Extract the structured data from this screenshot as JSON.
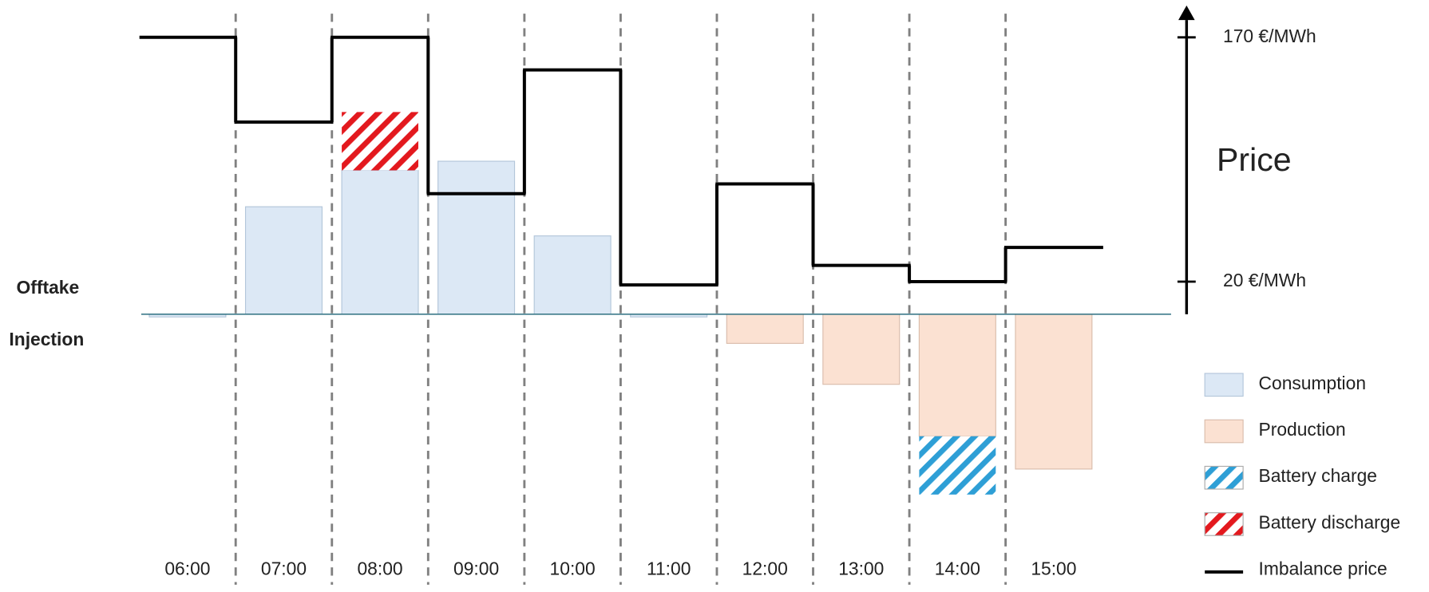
{
  "chart_data": {
    "type": "bar",
    "offtake_label": "Offtake",
    "injection_label": "Injection",
    "y2label": "Price",
    "categories": [
      "06:00",
      "07:00",
      "08:00",
      "09:00",
      "10:00",
      "11:00",
      "12:00",
      "13:00",
      "14:00",
      "15:00"
    ],
    "ylim": [
      -240,
      304
    ],
    "y2lim": [
      0,
      170
    ],
    "y2ticks": [
      {
        "value": 170,
        "label": "170 €/MWh"
      },
      {
        "value": 20,
        "label": "20 €/MWh"
      }
    ],
    "grid": false,
    "legend": "right",
    "series": [
      {
        "name": "Consumption",
        "type": "bar",
        "color": "#dce8f5",
        "stroke": "#b3c6da",
        "values": [
          -3,
          118,
          158,
          168,
          86,
          -3,
          null,
          null,
          null,
          null
        ]
      },
      {
        "name": "Production",
        "type": "bar",
        "color": "#fbe1d2",
        "stroke": "#d9bcab",
        "values": [
          null,
          null,
          null,
          null,
          null,
          null,
          -32,
          -77,
          -134,
          -170
        ]
      },
      {
        "name": "Battery charge",
        "type": "bar",
        "hatch": true,
        "color": "#2e9fd6",
        "values": [
          null,
          null,
          null,
          null,
          null,
          null,
          null,
          null,
          -64,
          null
        ]
      },
      {
        "name": "Battery discharge",
        "type": "bar",
        "hatch": true,
        "color": "#e3191e",
        "values": [
          null,
          null,
          64,
          null,
          null,
          null,
          null,
          null,
          null,
          null
        ]
      },
      {
        "name": "Imbalance price",
        "type": "step",
        "axis": "y2",
        "color": "#000000",
        "values": [
          170,
          118,
          170,
          74,
          150,
          18,
          80,
          30,
          20,
          41
        ]
      }
    ]
  }
}
